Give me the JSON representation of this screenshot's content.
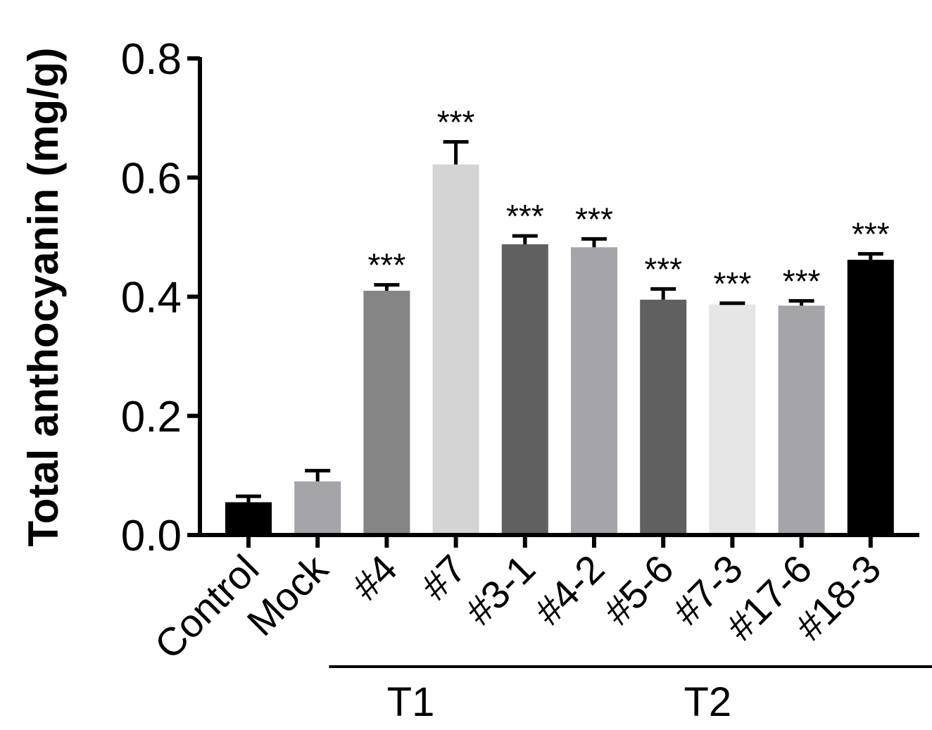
{
  "chart_data": {
    "type": "bar",
    "title": "",
    "xlabel": "",
    "ylabel": "Total anthocyanin (mg/g)",
    "ylim": [
      0,
      0.8
    ],
    "yticks": [
      "0.0",
      "0.2",
      "0.4",
      "0.6",
      "0.8"
    ],
    "ytick_values": [
      0,
      0.2,
      0.4,
      0.6,
      0.8
    ],
    "categories": [
      "Control",
      "Mock",
      "#4",
      "#7",
      "#3-1",
      "#4-2",
      "#5-6",
      "#7-3",
      "#17-6",
      "#18-3"
    ],
    "values": [
      0.055,
      0.09,
      0.41,
      0.622,
      0.488,
      0.483,
      0.395,
      0.387,
      0.385,
      0.462
    ],
    "errors": [
      0.01,
      0.018,
      0.01,
      0.038,
      0.014,
      0.014,
      0.018,
      0.002,
      0.008,
      0.01
    ],
    "significance": [
      "",
      "",
      "***",
      "***",
      "***",
      "***",
      "***",
      "***",
      "***",
      "***"
    ],
    "colors": [
      "#000000",
      "#a5a4a9",
      "#858585",
      "#d4d4d4",
      "#606060",
      "#a5a4a9",
      "#606060",
      "#e6e6e6",
      "#a5a4a9",
      "#000000"
    ],
    "groups": [
      {
        "label": "T1",
        "categories": [
          "#4",
          "#7"
        ]
      },
      {
        "label": "T2",
        "categories": [
          "#3-1",
          "#4-2",
          "#5-6",
          "#7-3",
          "#17-6",
          "#18-3"
        ]
      }
    ]
  }
}
